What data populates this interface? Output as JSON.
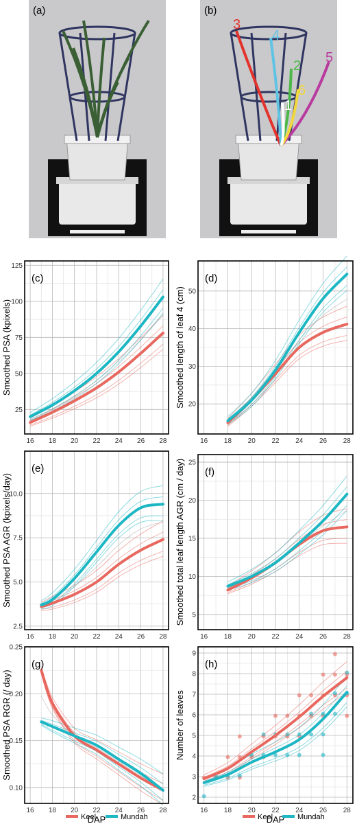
{
  "colors": {
    "keel": "#E8685F",
    "mundah": "#1DB7C4"
  },
  "photos": [
    {
      "label": "(a)"
    },
    {
      "label": "(b)",
      "leaf_labels": [
        {
          "text": "3",
          "color": "#E3322B"
        },
        {
          "text": "4",
          "color": "#5FC3E4"
        },
        {
          "text": "2",
          "color": "#4CB848"
        },
        {
          "text": "5",
          "color": "#B83A9E"
        },
        {
          "text": "6",
          "color": "#F2D83A"
        },
        {
          "text": "1",
          "color": "#FFFFFF"
        }
      ]
    }
  ],
  "xlabel_bottom": "DAP",
  "legends": [
    {
      "items": [
        {
          "name": "Keel",
          "series": "keel"
        },
        {
          "name": "Mundah",
          "series": "mundah"
        }
      ]
    },
    {
      "items": [
        {
          "name": "Keel",
          "series": "keel"
        },
        {
          "name": "Mundah",
          "series": "mundah"
        }
      ]
    }
  ],
  "chart_data": [
    {
      "panel": "(c)",
      "type": "line",
      "ylabel": "Smoothed PSA (kpixels)",
      "xlim": [
        15.5,
        28.5
      ],
      "ylim": [
        8,
        128
      ],
      "xticks": [
        16,
        18,
        20,
        22,
        24,
        26,
        28
      ],
      "yticks": [
        25,
        50,
        75,
        100,
        125
      ],
      "x": [
        16,
        18,
        20,
        22,
        24,
        26,
        28
      ],
      "series": [
        {
          "name": "Keel",
          "key": "keel",
          "values": [
            16,
            23,
            31,
            40,
            51,
            64,
            78
          ]
        },
        {
          "name": "Mundah",
          "key": "mundah",
          "values": [
            20,
            28,
            38,
            50,
            65,
            83,
            103
          ]
        }
      ]
    },
    {
      "panel": "(d)",
      "type": "line",
      "ylabel": "Smoothed length of leaf 4 (cm)",
      "xlim": [
        15.5,
        28.5
      ],
      "ylim": [
        12,
        58
      ],
      "xticks": [
        16,
        18,
        20,
        22,
        24,
        26,
        28
      ],
      "yticks": [
        20,
        30,
        40,
        50
      ],
      "x": [
        18,
        20,
        22,
        24,
        26,
        28
      ],
      "series": [
        {
          "name": "Keel",
          "key": "keel",
          "values": [
            15,
            21,
            28,
            35,
            39,
            41.2
          ]
        },
        {
          "name": "Mundah",
          "key": "mundah",
          "values": [
            15.5,
            21,
            29,
            39,
            48,
            54.5
          ]
        }
      ]
    },
    {
      "panel": "(e)",
      "type": "line",
      "ylabel": "Smoothed PSA AGR (kpixels/day)",
      "xlim": [
        15.5,
        28.5
      ],
      "ylim": [
        2.3,
        12.4
      ],
      "xticks": [
        16,
        18,
        20,
        22,
        24,
        26,
        28
      ],
      "yticks": [
        2.5,
        5.0,
        7.5,
        10.0
      ],
      "x": [
        17,
        18,
        20,
        22,
        24,
        26,
        28
      ],
      "series": [
        {
          "name": "Keel",
          "key": "keel",
          "values": [
            3.6,
            3.8,
            4.3,
            5.0,
            6.0,
            6.8,
            7.4
          ]
        },
        {
          "name": "Mundah",
          "key": "mundah",
          "values": [
            3.7,
            4.0,
            5.2,
            6.7,
            8.2,
            9.2,
            9.4
          ]
        }
      ]
    },
    {
      "panel": "(f)",
      "type": "line",
      "ylabel": "Smoothed total leaf length AGR (cm / day)",
      "xlim": [
        15.5,
        28.5
      ],
      "ylim": [
        3,
        26
      ],
      "xticks": [
        16,
        18,
        20,
        22,
        24,
        26,
        28
      ],
      "yticks": [
        5,
        10,
        15,
        20,
        25
      ],
      "x": [
        18,
        20,
        22,
        24,
        26,
        28
      ],
      "series": [
        {
          "name": "Keel",
          "key": "keel",
          "values": [
            8.2,
            9.8,
            11.8,
            14.2,
            16.0,
            16.5
          ]
        },
        {
          "name": "Mundah",
          "key": "mundah",
          "values": [
            8.7,
            10.0,
            11.8,
            14.4,
            17.3,
            20.8
          ]
        }
      ]
    },
    {
      "panel": "(g)",
      "type": "line",
      "ylabel": "Smoothed PSA RGR (/ day)",
      "xlabel": "DAP",
      "xlim": [
        15.5,
        28.5
      ],
      "ylim": [
        0.083,
        0.25
      ],
      "xticks": [
        16,
        18,
        20,
        22,
        24,
        26,
        28
      ],
      "yticks": [
        0.1,
        0.15,
        0.2,
        0.25
      ],
      "x": [
        17,
        18,
        20,
        22,
        24,
        26,
        28
      ],
      "series": [
        {
          "name": "Keel",
          "key": "keel",
          "values": [
            0.225,
            0.19,
            0.155,
            0.14,
            0.125,
            0.11,
            0.097
          ]
        },
        {
          "name": "Mundah",
          "key": "mundah",
          "values": [
            0.17,
            0.165,
            0.155,
            0.145,
            0.13,
            0.115,
            0.097
          ]
        }
      ]
    },
    {
      "panel": "(h)",
      "type": "scatter",
      "ylabel": "Number of leaves",
      "xlabel": "DAP",
      "xlim": [
        15.5,
        28.5
      ],
      "ylim": [
        1.7,
        9.3
      ],
      "xticks": [
        16,
        18,
        20,
        22,
        24,
        26,
        28
      ],
      "yticks": [
        2,
        3,
        4,
        5,
        6,
        7,
        8,
        9
      ],
      "x": [
        16,
        18,
        20,
        22,
        24,
        26,
        28
      ],
      "series": [
        {
          "name": "Keel",
          "key": "keel",
          "values": [
            2.9,
            3.4,
            4.2,
            5.0,
            5.9,
            6.9,
            7.8
          ]
        },
        {
          "name": "Mundah",
          "key": "mundah",
          "values": [
            2.7,
            3.1,
            3.7,
            4.2,
            4.8,
            5.8,
            7.1
          ]
        }
      ],
      "points": [
        {
          "x": 16,
          "y": 3,
          "s": "keel"
        },
        {
          "x": 16,
          "y": 2,
          "s": "mundah"
        },
        {
          "x": 17,
          "y": 3,
          "s": "keel"
        },
        {
          "x": 17,
          "y": 3,
          "s": "mundah"
        },
        {
          "x": 18,
          "y": 3,
          "s": "keel"
        },
        {
          "x": 18,
          "y": 4,
          "s": "keel"
        },
        {
          "x": 18,
          "y": 3,
          "s": "mundah"
        },
        {
          "x": 19,
          "y": 3,
          "s": "keel"
        },
        {
          "x": 19,
          "y": 4,
          "s": "keel"
        },
        {
          "x": 19,
          "y": 5,
          "s": "keel"
        },
        {
          "x": 19,
          "y": 3,
          "s": "mundah"
        },
        {
          "x": 20,
          "y": 4,
          "s": "keel"
        },
        {
          "x": 20,
          "y": 4,
          "s": "mundah"
        },
        {
          "x": 21,
          "y": 4,
          "s": "keel"
        },
        {
          "x": 21,
          "y": 5,
          "s": "keel"
        },
        {
          "x": 21,
          "y": 4,
          "s": "mundah"
        },
        {
          "x": 21,
          "y": 5,
          "s": "mundah"
        },
        {
          "x": 22,
          "y": 5,
          "s": "keel"
        },
        {
          "x": 22,
          "y": 6,
          "s": "keel"
        },
        {
          "x": 22,
          "y": 4,
          "s": "mundah"
        },
        {
          "x": 22,
          "y": 5,
          "s": "mundah"
        },
        {
          "x": 23,
          "y": 5,
          "s": "keel"
        },
        {
          "x": 23,
          "y": 6,
          "s": "keel"
        },
        {
          "x": 23,
          "y": 4,
          "s": "mundah"
        },
        {
          "x": 23,
          "y": 5,
          "s": "mundah"
        },
        {
          "x": 24,
          "y": 5,
          "s": "keel"
        },
        {
          "x": 24,
          "y": 6,
          "s": "keel"
        },
        {
          "x": 24,
          "y": 7,
          "s": "keel"
        },
        {
          "x": 24,
          "y": 4,
          "s": "mundah"
        },
        {
          "x": 24,
          "y": 5,
          "s": "mundah"
        },
        {
          "x": 25,
          "y": 6,
          "s": "keel"
        },
        {
          "x": 25,
          "y": 7,
          "s": "keel"
        },
        {
          "x": 25,
          "y": 5,
          "s": "mundah"
        },
        {
          "x": 25,
          "y": 6,
          "s": "mundah"
        },
        {
          "x": 26,
          "y": 6,
          "s": "keel"
        },
        {
          "x": 26,
          "y": 7,
          "s": "keel"
        },
        {
          "x": 26,
          "y": 8,
          "s": "keel"
        },
        {
          "x": 26,
          "y": 4,
          "s": "mundah"
        },
        {
          "x": 26,
          "y": 5,
          "s": "mundah"
        },
        {
          "x": 26,
          "y": 6,
          "s": "mundah"
        },
        {
          "x": 27,
          "y": 7,
          "s": "keel"
        },
        {
          "x": 27,
          "y": 8,
          "s": "keel"
        },
        {
          "x": 27,
          "y": 9,
          "s": "keel"
        },
        {
          "x": 27,
          "y": 6,
          "s": "mundah"
        },
        {
          "x": 27,
          "y": 7,
          "s": "mundah"
        },
        {
          "x": 28,
          "y": 6,
          "s": "keel"
        },
        {
          "x": 28,
          "y": 7,
          "s": "keel"
        },
        {
          "x": 28,
          "y": 8,
          "s": "keel"
        },
        {
          "x": 28,
          "y": 7,
          "s": "mundah"
        },
        {
          "x": 28,
          "y": 8,
          "s": "mundah"
        }
      ]
    }
  ]
}
